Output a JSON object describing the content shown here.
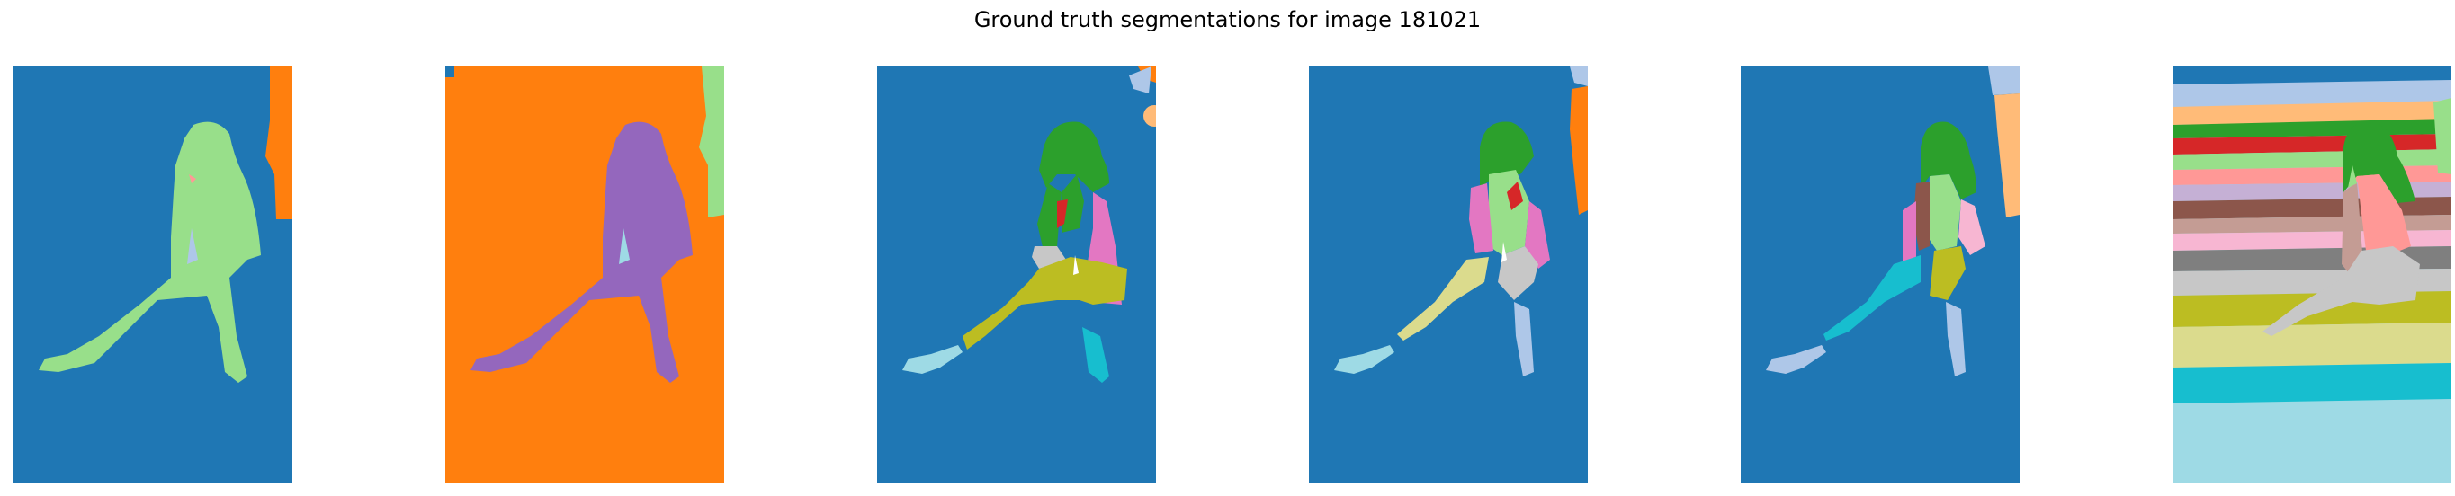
{
  "figure": {
    "title": "Ground truth segmentations for image 181021"
  },
  "palette": {
    "blue": "#1f77b4",
    "orange": "#ff7f0e",
    "light_green": "#98df8a",
    "purple": "#9467bd",
    "light_blue": "#aec7e8",
    "light_orange": "#ffbb78",
    "green": "#2ca02c",
    "red": "#d62728",
    "pink": "#e377c2",
    "olive": "#bcbd22",
    "khaki": "#dbdb8d",
    "cyan": "#17becf",
    "pale_cyan": "#9edae5",
    "gray": "#7f7f7f",
    "light_gray": "#c7c7c7",
    "brown": "#8c564b",
    "rose": "#ff9896",
    "light_purple": "#c5b0d5",
    "light_pink": "#f7b6d2",
    "tan": "#c49c94"
  }
}
